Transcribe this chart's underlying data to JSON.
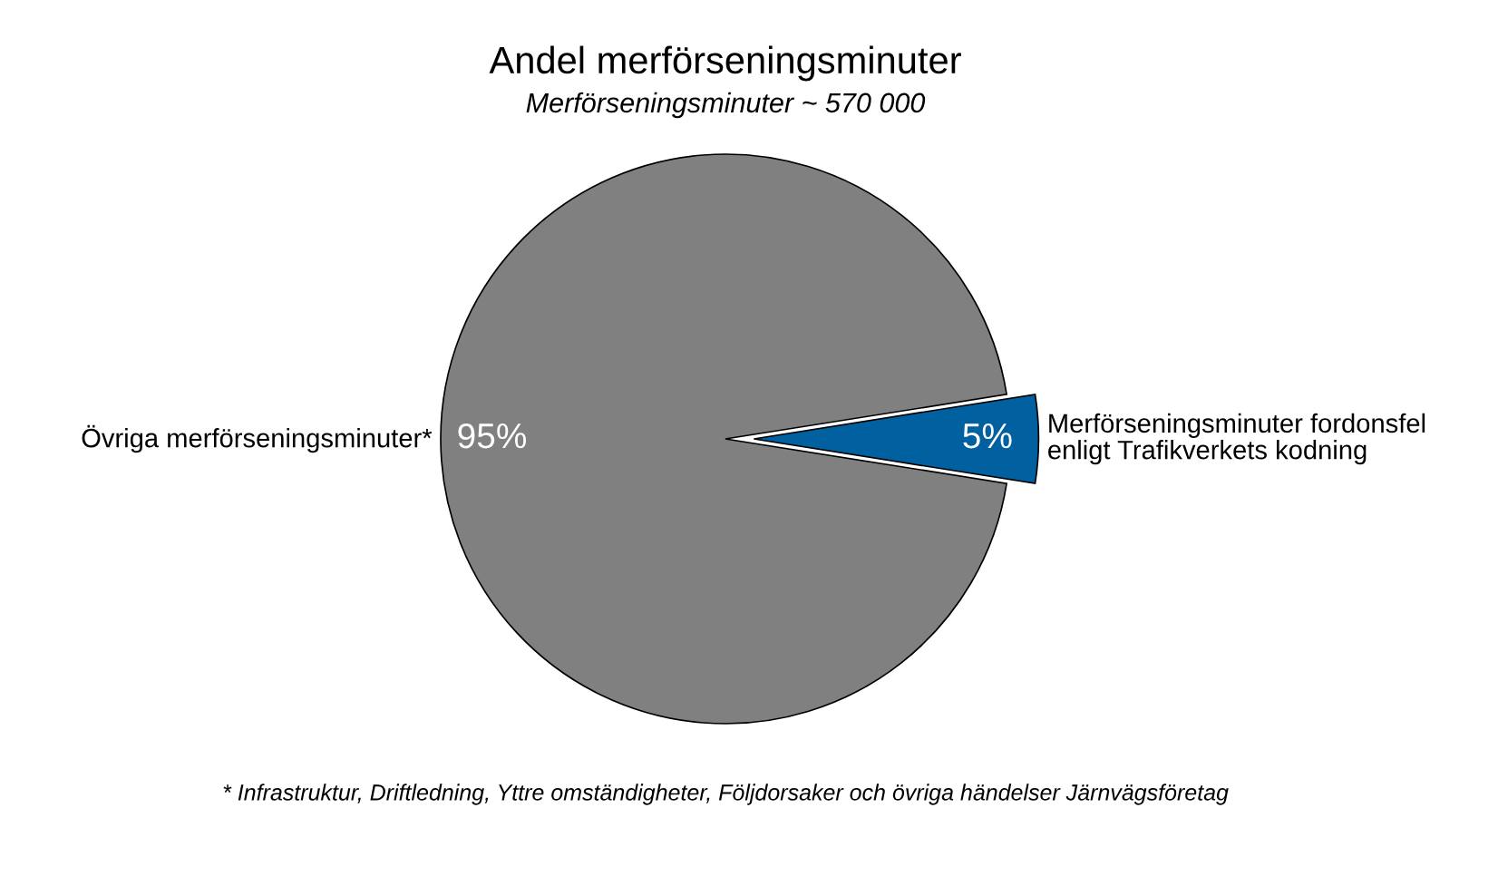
{
  "chart_data": {
    "type": "pie",
    "title": "Andel merförseningsminuter",
    "subtitle": "Merförseningsminuter ~ 570 000",
    "categories": [
      "Övriga merförseningsminuter*",
      "Merförseningsminuter fordonsfel\nenligt Trafikverkets kodning"
    ],
    "values": [
      95,
      5
    ],
    "colors": [
      "#808080",
      "#0060a0"
    ],
    "value_labels": [
      "95%",
      "5%"
    ],
    "legend": false,
    "annotations": [
      "* Infrastruktur, Driftledning, Yttre omständigheter, Följdorsaker och övriga händelser Järnvägsföretag"
    ]
  }
}
